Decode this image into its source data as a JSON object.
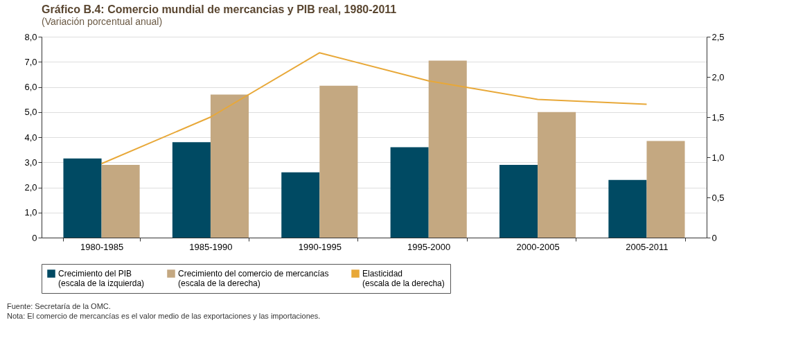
{
  "chart_data": {
    "type": "bar",
    "title": "Gráfico B.4: Comercio mundial de mercancias y PIB real, 1980-2011",
    "subtitle": "(Variación porcentual anual)",
    "categories": [
      "1980-1985",
      "1985-1990",
      "1990-1995",
      "1995-2000",
      "2000-2005",
      "2005-2011"
    ],
    "series": [
      {
        "name": "Crecimiento del PIB (escala de la izquierda)",
        "color": "#004a63",
        "values": [
          3.15,
          3.8,
          2.6,
          3.6,
          2.9,
          2.3
        ]
      },
      {
        "name": "Crecimiento del comercio de mercancías (escala de la derecha)",
        "color": "#c4a881",
        "values": [
          2.9,
          5.7,
          6.05,
          7.05,
          5.0,
          3.85
        ]
      },
      {
        "name": "Elasticidad (escala de la derecha)",
        "color": "#e8a838",
        "type": "line",
        "axis": "y2",
        "values": [
          0.92,
          1.5,
          2.3,
          1.95,
          1.72,
          1.66
        ]
      }
    ],
    "ylim": [
      0,
      8
    ],
    "yticks": [
      0,
      {
        "value": 1,
        "label": "1,0"
      },
      {
        "value": 2,
        "label": "2,0"
      },
      {
        "value": 3,
        "label": "3,0"
      },
      {
        "value": 4,
        "label": "4,0"
      },
      {
        "value": 5,
        "label": "5,0"
      },
      {
        "value": 6,
        "label": "6,0"
      },
      {
        "value": 7,
        "label": "7,0"
      },
      {
        "value": 8,
        "label": "8,0"
      }
    ],
    "y2lim": [
      0,
      2.5
    ],
    "y2ticks": [
      0,
      {
        "value": 0.5,
        "label": "0,5"
      },
      {
        "value": 1,
        "label": "1,0"
      },
      {
        "value": 1.5,
        "label": "1,5"
      },
      {
        "value": 2,
        "label": "2,0"
      },
      {
        "value": 2.5,
        "label": "2,5"
      }
    ],
    "grid": "y",
    "legend": "bottom",
    "marker": "none",
    "annotations": [
      "Fuente: Secretaría de la OMC.",
      "Nota: El comercio de mercancías es el valor medio de las exportaciones y las importaciones."
    ]
  }
}
